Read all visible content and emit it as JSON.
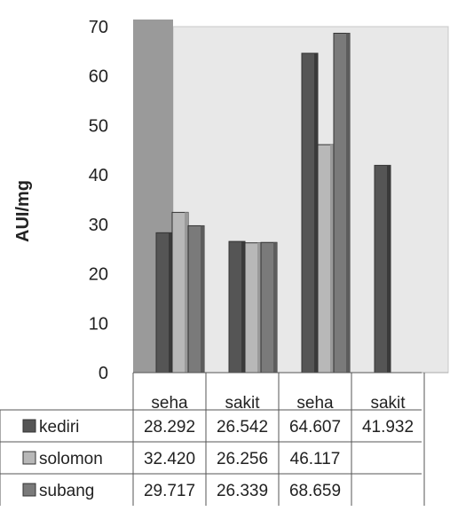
{
  "chart_data": {
    "type": "bar",
    "ylabel": "AUI/mg",
    "ylim": [
      0,
      70
    ],
    "yticks": [
      0,
      10,
      20,
      30,
      40,
      50,
      60,
      70
    ],
    "categories": [
      "seha",
      "sakit",
      "seha",
      "sakit"
    ],
    "grid": false,
    "legend": "data-table-below",
    "series": [
      {
        "name": "kediri",
        "values": [
          28.292,
          26.542,
          64.607,
          41.932
        ],
        "labels": [
          "28.292",
          "26.542",
          "64.607",
          "41.932"
        ],
        "color": "#555555",
        "shade": "#3a3a3a"
      },
      {
        "name": "solomon",
        "values": [
          32.42,
          26.256,
          46.117,
          null
        ],
        "labels": [
          "32.420",
          "26.256",
          "46.117",
          ""
        ],
        "color": "#b8b8b8",
        "shade": "#9a9a9a"
      },
      {
        "name": "subang",
        "values": [
          29.717,
          26.339,
          68.659,
          null
        ],
        "labels": [
          "29.717",
          "26.339",
          "68.659",
          ""
        ],
        "color": "#7a7a7a",
        "shade": "#5c5c5c"
      }
    ]
  }
}
